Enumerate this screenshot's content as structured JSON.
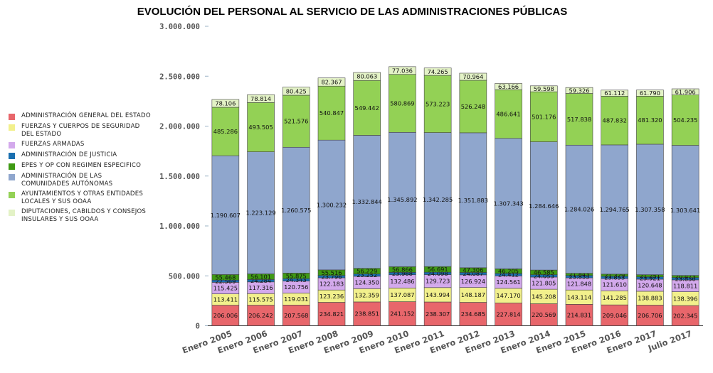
{
  "chart_data": {
    "type": "bar",
    "stacked": true,
    "title": "EVOLUCIÓN DEL PERSONAL AL SERVICIO DE LAS ADMINISTRACIONES PÚBLICAS",
    "xlabel": "",
    "ylabel": "",
    "ylim": [
      0,
      3000000
    ],
    "y_ticks": [
      "0",
      "500.000",
      "1.000.000",
      "1.500.000",
      "2.000.000",
      "2.500.000",
      "3.000.000"
    ],
    "y_tick_values": [
      0,
      500000,
      1000000,
      1500000,
      2000000,
      2500000,
      3000000
    ],
    "categories": [
      "Enero 2005",
      "Enero 2006",
      "Enero 2007",
      "Enero 2008",
      "Enero 2009",
      "Enero 2010",
      "Enero 2011",
      "Enero 2012",
      "Enero 2013",
      "Enero 2014",
      "Enero 2015",
      "Enero 2016",
      "Enero 2017",
      "Julio 2017"
    ],
    "series": [
      {
        "name": "ADMINISTRACIÓN GENERAL DEL ESTADO",
        "color": "#e8666b",
        "values": [
          206006,
          206242,
          207568,
          234821,
          238851,
          241152,
          238307,
          234685,
          227814,
          220569,
          214831,
          209046,
          206706,
          202345
        ],
        "labels": [
          "206.006",
          "206.242",
          "207.568",
          "234.821",
          "238.851",
          "241.152",
          "238.307",
          "234.685",
          "227.814",
          "220.569",
          "214.831",
          "209.046",
          "206.706",
          "202.345"
        ]
      },
      {
        "name": "FUERZAS Y CUERPOS DE SEGURIDAD DEL ESTADO",
        "color": "#f2f08c",
        "values": [
          113411,
          115575,
          119031,
          123236,
          132359,
          137087,
          143994,
          148187,
          147170,
          145208,
          143114,
          141285,
          138883,
          138396
        ],
        "labels": [
          "113.411",
          "115.575",
          "119.031",
          "123.236",
          "132.359",
          "137.087",
          "143.994",
          "148.187",
          "147.170",
          "145.208",
          "143.114",
          "141.285",
          "138.883",
          "138.396"
        ]
      },
      {
        "name": "FUERZAS ARMADAS",
        "color": "#d3a9ec",
        "values": [
          115425,
          117316,
          120756,
          122183,
          124350,
          132486,
          129723,
          126924,
          124561,
          121805,
          121848,
          121610,
          120648,
          118811
        ],
        "labels": [
          "115.425",
          "117.316",
          "120.756",
          "122.183",
          "124.350",
          "132.486",
          "129.723",
          "126.924",
          "124.561",
          "121.805",
          "121.848",
          "121.610",
          "120.648",
          "118.811"
        ]
      },
      {
        "name": "ADMINISTRACIÓN DE JUSTICIA",
        "color": "#1a6fb0",
        "values": [
          22569,
          24284,
          24343,
          23796,
          23252,
          23968,
          24098,
          24087,
          24412,
          24053,
          23855,
          23853,
          23921,
          23830
        ],
        "labels": [
          "22.569",
          "24.284",
          "24.343",
          "23.796",
          "23.252",
          "23.968",
          "24.098",
          "24.087",
          "24.412",
          "24.053",
          "23.855",
          "23.853",
          "23.921",
          "23.830"
        ]
      },
      {
        "name": "EPES Y OP CON REGIMEN ESPECIFICO",
        "color": "#3f9a14",
        "values": [
          55468,
          56101,
          55875,
          55516,
          56229,
          56866,
          56691,
          47306,
          46205,
          46585,
          21843,
          21329,
          21251,
          20473
        ],
        "labels": [
          "55.468",
          "56.101",
          "55.875",
          "55.516",
          "56.229",
          "56.866",
          "56.691",
          "47.306",
          "46.205",
          "46.585",
          "21.843",
          "21.329",
          "21.251",
          "20.473"
        ]
      },
      {
        "name": "ADMINISTRACIÓN DE LAS COMUNIDADES AUTÓNOMAS",
        "color": "#8fa6cd",
        "values": [
          1190607,
          1223129,
          1260575,
          1300232,
          1332844,
          1345892,
          1342285,
          1351883,
          1307343,
          1284646,
          1284026,
          1294765,
          1307358,
          1303641
        ],
        "labels": [
          "1.190.607",
          "1.223.129",
          "1.260.575",
          "1.300.232",
          "1.332.844",
          "1.345.892",
          "1.342.285",
          "1.351.883",
          "1.307.343",
          "1.284.646",
          "1.284.026",
          "1.294.765",
          "1.307.358",
          "1.303.641"
        ]
      },
      {
        "name": "AYUNTAMIENTOS Y OTRAS ENTIDADES LOCALES Y SUS OOAA",
        "color": "#93d155",
        "values": [
          485286,
          493505,
          521576,
          540847,
          549442,
          580869,
          573223,
          526248,
          486641,
          501176,
          517838,
          487832,
          481320,
          504235
        ],
        "labels": [
          "485.286",
          "493.505",
          "521.576",
          "540.847",
          "549.442",
          "580.869",
          "573.223",
          "526.248",
          "486.641",
          "501.176",
          "517.838",
          "487.832",
          "481.320",
          "504.235"
        ]
      },
      {
        "name": "DIPUTACIONES, CABILDOS Y CONSEJOS INSULARES Y SUS OOAA",
        "color": "#e3f2c6",
        "values": [
          78106,
          78814,
          80425,
          82367,
          80063,
          77036,
          74265,
          70964,
          63166,
          59598,
          59326,
          61112,
          61790,
          61906
        ],
        "labels": [
          "78.106",
          "78.814",
          "80.425",
          "82.367",
          "80.063",
          "77.036",
          "74.265",
          "70.964",
          "63.166",
          "59.598",
          "59.326",
          "61.112",
          "61.790",
          "61.906"
        ]
      }
    ]
  }
}
